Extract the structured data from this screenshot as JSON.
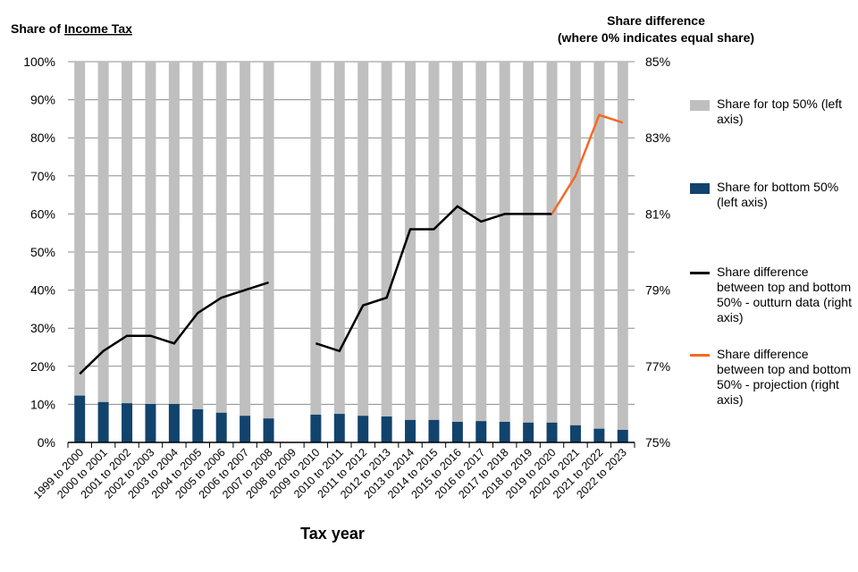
{
  "chart_data": {
    "type": "bar",
    "title_left_prefix": "Share of ",
    "title_left_underlined": "Income Tax",
    "title_right_line1": "Share difference",
    "title_right_line2": "(where 0% indicates equal share)",
    "xlabel": "Tax year",
    "categories": [
      "1999 to 2000",
      "2000 to 2001",
      "2001 to 2002",
      "2002 to 2003",
      "2003 to 2004",
      "2004 to 2005",
      "2005 to 2006",
      "2006 to 2007",
      "2007 to 2008",
      "2008 to 2009",
      "2009 to 2010",
      "2010 to 2011",
      "2011 to 2012",
      "2012 to 2013",
      "2013 to 2014",
      "2014 to 2015",
      "2015 to 2016",
      "2016 to 2017",
      "2017 to 2018",
      "2018 to 2019",
      "2019 to 2020",
      "2020 to 2021",
      "2021 to 2022",
      "2022 to 2023"
    ],
    "left_axis": {
      "ylim": [
        0,
        100
      ],
      "ticks": [
        "0%",
        "10%",
        "20%",
        "30%",
        "40%",
        "50%",
        "60%",
        "70%",
        "80%",
        "90%",
        "100%"
      ]
    },
    "right_axis": {
      "ylim": [
        75,
        85
      ],
      "ticks": [
        "75%",
        "77%",
        "79%",
        "81%",
        "83%",
        "85%"
      ]
    },
    "series": [
      {
        "name": "Share for bottom 50% (left axis)",
        "type": "bar",
        "axis": "left",
        "color": "#12436d",
        "values": [
          12.3,
          10.6,
          10.3,
          10.1,
          10.1,
          8.7,
          7.8,
          7.0,
          6.3,
          null,
          7.3,
          7.5,
          7.0,
          6.8,
          5.9,
          5.9,
          5.4,
          5.6,
          5.4,
          5.2,
          5.2,
          4.5,
          3.6,
          3.3
        ]
      },
      {
        "name": "Share for top 50% (left axis)",
        "type": "bar",
        "axis": "left",
        "color": "#bfbfbf",
        "stacked": true,
        "values": [
          87.7,
          89.4,
          89.7,
          89.9,
          89.9,
          91.3,
          92.2,
          93.0,
          93.7,
          null,
          92.7,
          92.5,
          93.0,
          93.2,
          94.1,
          94.1,
          94.6,
          94.4,
          94.6,
          94.8,
          94.8,
          95.5,
          96.4,
          96.7
        ]
      },
      {
        "name": "Share difference between top and bottom 50% - outturn data (right axis)",
        "type": "line",
        "axis": "right",
        "color": "#000000",
        "values": [
          76.8,
          77.4,
          77.8,
          77.8,
          77.6,
          78.4,
          78.8,
          79.0,
          79.2,
          null,
          77.6,
          77.4,
          78.6,
          78.8,
          80.6,
          80.6,
          81.2,
          80.8,
          81.0,
          81.0,
          81.0,
          null,
          null,
          null
        ]
      },
      {
        "name": "Share difference between top and bottom 50% - projection (right axis)",
        "type": "line",
        "axis": "right",
        "color": "#f46a25",
        "values": [
          null,
          null,
          null,
          null,
          null,
          null,
          null,
          null,
          null,
          null,
          null,
          null,
          null,
          null,
          null,
          null,
          null,
          null,
          null,
          null,
          81.0,
          82.0,
          83.6,
          83.4
        ]
      }
    ],
    "legend": {
      "placement": "right",
      "items": [
        {
          "label": "Share for top 50% (left axis)",
          "color": "#bfbfbf"
        },
        {
          "label": "Share for bottom 50% (left axis)",
          "color": "#12436d"
        },
        {
          "label": "Share difference between top and bottom 50% - outturn data (right axis)",
          "color": "#000000"
        },
        {
          "label": "Share difference between top and bottom 50% - projection (right axis)",
          "color": "#f46a25"
        }
      ]
    },
    "grid": true
  }
}
